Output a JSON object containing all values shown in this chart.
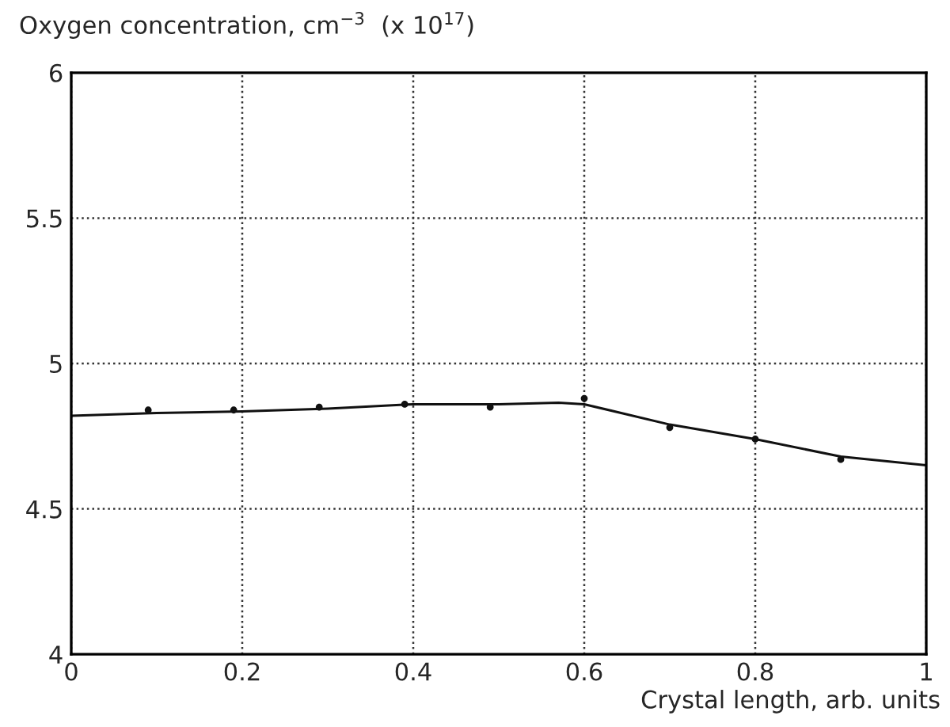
{
  "chart_data": {
    "type": "scatter",
    "ylabel": "Oxygen concentration, cm$^{−3}$  (x 10$^{17}$)",
    "xlabel": "Crystal length, arb. units",
    "series": [
      {
        "color": "#111111",
        "marker": "circle",
        "x": [
          0.09,
          0.19,
          0.29,
          0.39,
          0.49,
          0.6,
          0.7,
          0.8,
          0.9
        ],
        "values": [
          4.84,
          4.84,
          4.85,
          4.86,
          4.85,
          4.88,
          4.78,
          4.74,
          4.67
        ]
      },
      {
        "type": "line",
        "color": "#111111",
        "line_style": "solid",
        "x": [
          0,
          0.1,
          0.2,
          0.3,
          0.4,
          0.5,
          0.57,
          0.6,
          0.7,
          0.8,
          0.9,
          1.0
        ],
        "values": [
          4.82,
          4.83,
          4.835,
          4.845,
          4.86,
          4.86,
          4.865,
          4.86,
          4.79,
          4.74,
          4.68,
          4.65
        ]
      }
    ],
    "xlim": [
      0,
      1
    ],
    "xticks": [
      0,
      0.2,
      0.4,
      0.6,
      0.8,
      1
    ],
    "ylim": [
      4,
      6
    ],
    "yticks": [
      4,
      4.5,
      5,
      5.5,
      6
    ],
    "grid": true
  }
}
